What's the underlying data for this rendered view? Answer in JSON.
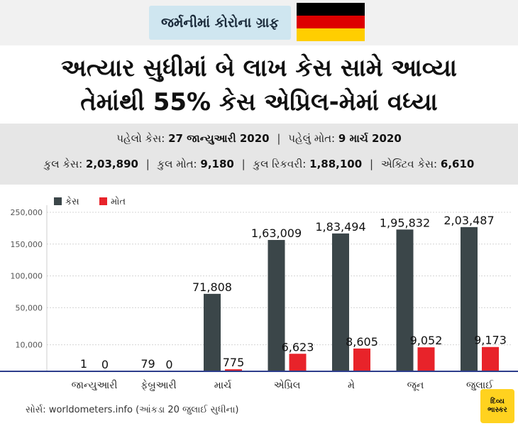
{
  "badge": {
    "title": "જર્મનીમાં કોરોના ગ્રાફ",
    "flag_colors": [
      "#000000",
      "#dd0000",
      "#ffce00"
    ]
  },
  "headline": {
    "line1": "અત્યાર સુધીમાં બે લાખ કેસ સામે આવ્યા",
    "line2": "તેમાંથી 55% કેસ એપ્રિલ-મેમાં વધ્યા"
  },
  "info": {
    "first_case_label": "પહેલો કેસ:",
    "first_case_value": "27 જાન્યુઆરી 2020",
    "first_death_label": "પહેલું મોત:",
    "first_death_value": "9 માર્ચ 2020",
    "total_cases_label": "કુલ કેસ:",
    "total_cases_value": "2,03,890",
    "total_deaths_label": "કુલ મોત:",
    "total_deaths_value": "9,180",
    "total_recovered_label": "કુલ રિકવરી:",
    "total_recovered_value": "1,88,100",
    "active_cases_label": "એક્ટિવ કેસ:",
    "active_cases_value": "6,610"
  },
  "chart_data": {
    "type": "bar",
    "title": "",
    "xlabel": "",
    "ylabel": "",
    "categories": [
      "જાન્યુઆરી",
      "ફેબ્રુઆરી",
      "માર્ચ",
      "એપ્રિલ",
      "મે",
      "જૂન",
      "જુલાઈ"
    ],
    "series": [
      {
        "name": "કેસ",
        "color": "#3b4649",
        "values": [
          1,
          79,
          71808,
          163009,
          183494,
          195832,
          203487
        ],
        "labels": [
          "1",
          "79",
          "71,808",
          "1,63,009",
          "1,83,494",
          "1,95,832",
          "2,03,487"
        ]
      },
      {
        "name": "મોત",
        "color": "#e8232a",
        "values": [
          0,
          0,
          775,
          6623,
          8605,
          9052,
          9173
        ],
        "labels": [
          "0",
          "0",
          "775",
          "6,623",
          "8,605",
          "9,052",
          "9,173"
        ]
      }
    ],
    "y_ticks": [
      {
        "label": "10,000",
        "value": 10000
      },
      {
        "label": "50,000",
        "value": 50000
      },
      {
        "label": "100,000",
        "value": 100000
      },
      {
        "label": "150,000",
        "value": 150000
      },
      {
        "label": "250,000",
        "value": 250000
      }
    ],
    "y_scale_breakpoints": [
      [
        0,
        0
      ],
      [
        10000,
        0.1667
      ],
      [
        50000,
        0.4
      ],
      [
        100000,
        0.6
      ],
      [
        150000,
        0.8
      ],
      [
        250000,
        1.0
      ]
    ],
    "ylim": [
      0,
      250000
    ],
    "grid": true,
    "legend_position": "top-left",
    "axis_color": "#2d3e8c"
  },
  "footer": {
    "source": "સોર્સ: worldometers.info (આંકડા 20 જુલાઈ સુધીના)",
    "logo_line1": "દિવ્ય",
    "logo_line2": "ભાસ્કર"
  }
}
